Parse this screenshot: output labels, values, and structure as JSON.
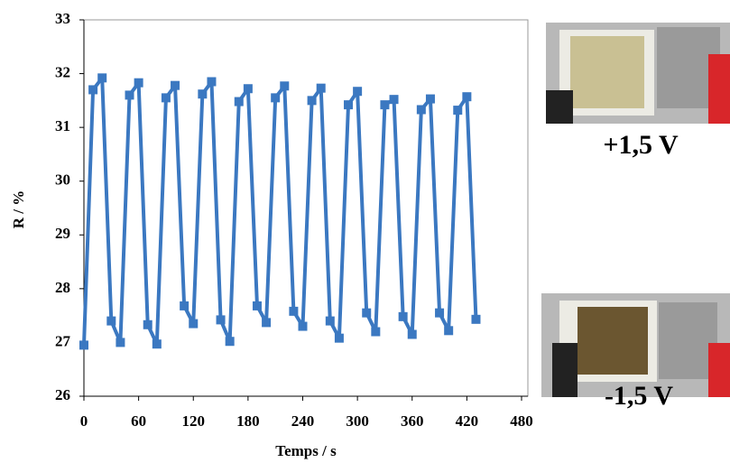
{
  "chart_data": {
    "type": "line",
    "x_label": "Temps / s",
    "y_label": "R / %",
    "x": [
      0,
      10,
      20,
      30,
      40,
      50,
      60,
      70,
      80,
      90,
      100,
      110,
      120,
      130,
      140,
      150,
      160,
      170,
      180,
      190,
      200,
      210,
      220,
      230,
      240,
      250,
      260,
      270,
      280,
      290,
      300,
      310,
      320,
      330,
      340,
      350,
      360,
      370,
      380,
      390,
      400,
      410,
      420,
      430
    ],
    "series": [
      {
        "color": "#3b78c1",
        "values": [
          26.95,
          31.7,
          31.92,
          27.4,
          27.0,
          31.6,
          31.83,
          27.33,
          26.97,
          31.55,
          31.78,
          27.68,
          27.35,
          31.62,
          31.85,
          27.42,
          27.02,
          31.48,
          31.72,
          27.68,
          27.37,
          31.55,
          31.77,
          27.58,
          27.3,
          31.5,
          31.73,
          27.4,
          27.08,
          31.42,
          31.67,
          27.55,
          27.2,
          31.42,
          31.52,
          27.48,
          27.15,
          31.33,
          31.53,
          27.55,
          27.22,
          31.32,
          31.57,
          27.43
        ]
      }
    ],
    "xlim": [
      0,
      480
    ],
    "ylim": [
      26,
      33
    ],
    "xticks": [
      0,
      60,
      120,
      180,
      240,
      300,
      360,
      420,
      480
    ],
    "yticks": [
      26,
      27,
      28,
      29,
      30,
      31,
      32,
      33
    ],
    "annotations": [
      "+1,5 V",
      "-1,5 V"
    ]
  }
}
